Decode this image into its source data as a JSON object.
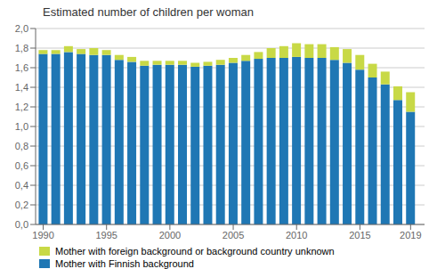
{
  "chart_data": {
    "type": "bar",
    "title": "Estimated number of children per woman",
    "stacked": true,
    "grid": true,
    "legend": "bottom",
    "x": [
      1990,
      1991,
      1992,
      1993,
      1994,
      1995,
      1996,
      1997,
      1998,
      1999,
      2000,
      2001,
      2002,
      2003,
      2004,
      2005,
      2006,
      2007,
      2008,
      2009,
      2010,
      2011,
      2012,
      2013,
      2014,
      2015,
      2016,
      2017,
      2018,
      2019
    ],
    "series": [
      {
        "name": "Mother with Finnish background",
        "color": "#1f77b4",
        "values": [
          1.74,
          1.74,
          1.76,
          1.74,
          1.73,
          1.73,
          1.68,
          1.66,
          1.62,
          1.63,
          1.63,
          1.63,
          1.61,
          1.62,
          1.63,
          1.65,
          1.67,
          1.69,
          1.7,
          1.7,
          1.71,
          1.7,
          1.7,
          1.68,
          1.65,
          1.58,
          1.5,
          1.43,
          1.27,
          1.15
        ]
      },
      {
        "name": "Mother with foreign background or background country unknown",
        "color": "#c8d946",
        "values": [
          0.04,
          0.04,
          0.06,
          0.05,
          0.07,
          0.05,
          0.05,
          0.05,
          0.05,
          0.04,
          0.04,
          0.04,
          0.04,
          0.04,
          0.05,
          0.05,
          0.06,
          0.07,
          0.1,
          0.12,
          0.14,
          0.14,
          0.14,
          0.13,
          0.14,
          0.15,
          0.14,
          0.13,
          0.14,
          0.2
        ]
      }
    ],
    "xlim": [
      1989.4,
      2020.1
    ],
    "xticks": [
      1990,
      1995,
      2000,
      2005,
      2010,
      2015,
      2019
    ],
    "ylim": [
      0,
      2.0
    ],
    "yticks": [
      {
        "value": 0.0,
        "label": "0,0"
      },
      {
        "value": 0.2,
        "label": "0,2"
      },
      {
        "value": 0.4,
        "label": "0,4"
      },
      {
        "value": 0.6,
        "label": "0,6"
      },
      {
        "value": 0.8,
        "label": "0,8"
      },
      {
        "value": 1.0,
        "label": "1,0"
      },
      {
        "value": 1.2,
        "label": "1,2"
      },
      {
        "value": 1.4,
        "label": "1,4"
      },
      {
        "value": 1.6,
        "label": "1,6"
      },
      {
        "value": 1.8,
        "label": "1,8"
      },
      {
        "value": 2.0,
        "label": "2,0"
      }
    ]
  }
}
